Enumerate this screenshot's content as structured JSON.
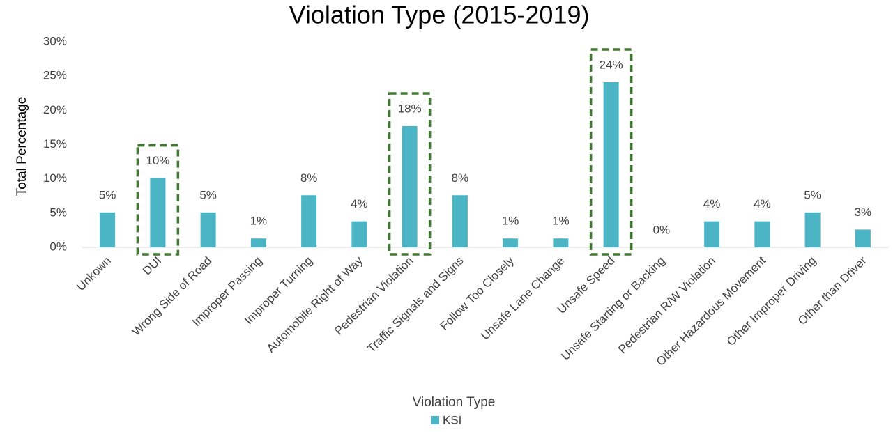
{
  "chart_data": {
    "type": "bar",
    "title": "Violation Type (2015-2019)",
    "x_label": "Violation Type",
    "y_label": "Total Percentage",
    "categories": [
      "Unkown",
      "DUI",
      "Wrong Side of Road",
      "Improper Passing",
      "Improper Turning",
      "Automobile Right of Way",
      "Pedestrian Violation",
      "Traffic Signals and Signs",
      "Follow Too Closely",
      "Unsafe Lane Change",
      "Unsafe Speed",
      "Unsafe Starting or Backing",
      "Pedestrian R/W Violation",
      "Other Hazardous Movement",
      "Other Improper Driving",
      "Other than Driver"
    ],
    "series": [
      {
        "name": "KSI",
        "color": "#4bb5c6",
        "values": [
          5.1,
          10.1,
          5.1,
          1.3,
          7.6,
          3.8,
          17.7,
          7.6,
          1.3,
          1.3,
          24.1,
          0,
          3.8,
          3.8,
          5.1,
          2.6
        ],
        "value_labels": [
          "5%",
          "10%",
          "5%",
          "1%",
          "8%",
          "4%",
          "18%",
          "8%",
          "1%",
          "1%",
          "24%",
          "0%",
          "4%",
          "4%",
          "5%",
          "3%"
        ]
      }
    ],
    "ylim": [
      0,
      30
    ],
    "yticks": [
      {
        "value": 0,
        "label": "0%"
      },
      {
        "value": 5,
        "label": "5%"
      },
      {
        "value": 10,
        "label": "10%"
      },
      {
        "value": 15,
        "label": "15%"
      },
      {
        "value": 20,
        "label": "20%"
      },
      {
        "value": 25,
        "label": "25%"
      },
      {
        "value": 30,
        "label": "30%"
      }
    ],
    "grid": false,
    "legend": "bottom"
  }
}
